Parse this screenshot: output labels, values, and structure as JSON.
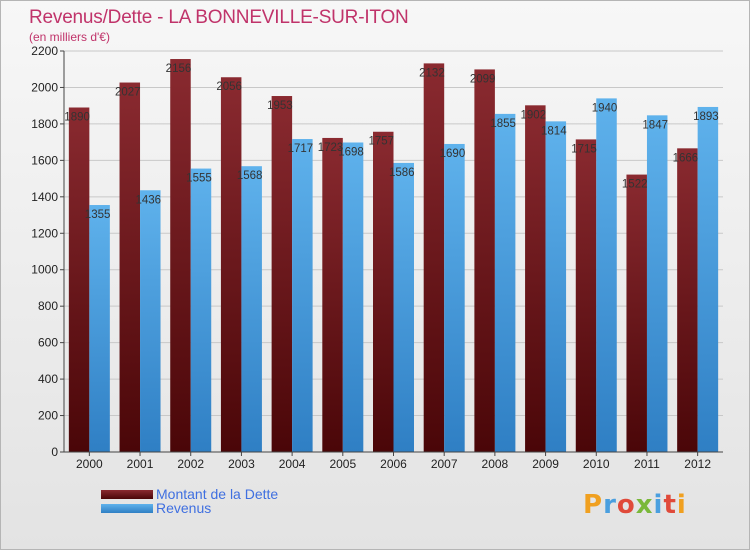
{
  "header": {
    "title": "Revenus/Dette - LA BONNEVILLE-SUR-ITON",
    "subtitle": "(en milliers d'€)"
  },
  "legend": {
    "debt": "Montant de la Dette",
    "revenue": "Revenus"
  },
  "logo": {
    "text": "Proxiti"
  },
  "colors": {
    "debt": "#7a1e24",
    "revenue": "#4a9fdf",
    "title": "#c0336a",
    "legend_text": "#3f6fe0"
  },
  "chart_data": {
    "type": "bar",
    "title": "Revenus/Dette - LA BONNEVILLE-SUR-ITON",
    "subtitle": "(en milliers d'€)",
    "categories": [
      "2000",
      "2001",
      "2002",
      "2003",
      "2004",
      "2005",
      "2006",
      "2007",
      "2008",
      "2009",
      "2010",
      "2011",
      "2012"
    ],
    "series": [
      {
        "name": "Montant de la Dette",
        "values": [
          1890,
          2027,
          2156,
          2056,
          1953,
          1723,
          1757,
          2132,
          2099,
          1902,
          1715,
          1522,
          1666
        ]
      },
      {
        "name": "Revenus",
        "values": [
          1355,
          1436,
          1555,
          1568,
          1717,
          1698,
          1586,
          1690,
          1855,
          1814,
          1940,
          1847,
          1893
        ]
      }
    ],
    "yticks": [
      0,
      200,
      400,
      600,
      800,
      1000,
      1200,
      1400,
      1600,
      1800,
      2000,
      2200
    ],
    "ylim": [
      0,
      2200
    ],
    "grid": true,
    "legend_position": "bottom-left"
  }
}
